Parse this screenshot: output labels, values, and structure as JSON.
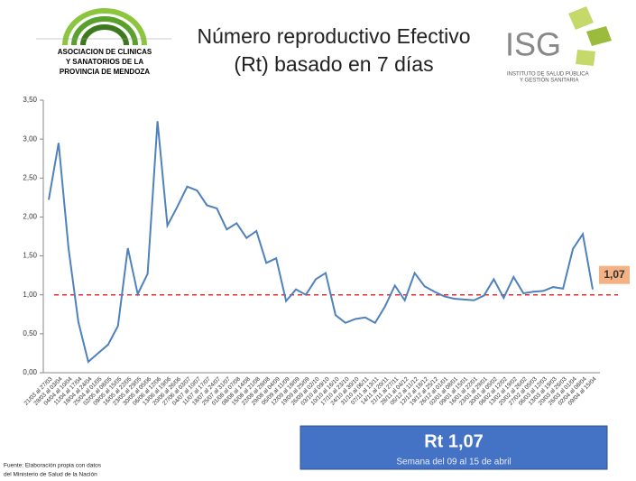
{
  "logo_left": {
    "lines": [
      "ASOCIACION DE CLINICAS",
      "Y SANATORIOS DE LA",
      "PROVINCIA DE MENDOZA"
    ]
  },
  "logo_right": {
    "name": "ISG",
    "lines": [
      "INSTITUTO DE SALUD PÚBLICA",
      "Y GESTIÓN SANITARIA"
    ]
  },
  "chart_data": {
    "type": "line",
    "title": [
      "Número reproductivo Efectivo",
      "(Rt) basado en 7 días"
    ],
    "categories": [
      "21/03 al 27/03",
      "28/03 al 03/04",
      "04/04 al 10/04",
      "11/04 al 17/04",
      "18/04 al 24/04",
      "25/04 al 01/05",
      "02/05 al 08/05",
      "09/05 al 15/05",
      "16/05 al 22/05",
      "23/05 al 29/05",
      "30/05 al 05/06",
      "06/06 al 12/06",
      "13/06 al 19/06",
      "20/06 al 26/06",
      "27/06 al 03/07",
      "04/07 al 10/07",
      "11/07 al 17/07",
      "18/07 al 24/07",
      "25/07 al 31/07",
      "01/08 al 07/08",
      "08/08 al 14/08",
      "15/08 al 21/08",
      "22/08 al 28/08",
      "29/08 al 04/09",
      "05/09 al 11/09",
      "12/09 al 18/09",
      "19/09 al 25/09",
      "26/09 al 02/10",
      "03/10 al 09/10",
      "10/10 al 16/10",
      "17/10 al 23/10",
      "24/10 al 30/10",
      "31/10 al 06/11",
      "07/11 al 13/11",
      "14/11 al 20/11",
      "21/11 al 27/11",
      "28/11 al 04/12",
      "05/12 al 11/12",
      "12/12 al 18/12",
      "19/12 al 25/12",
      "26/12 al 01/01",
      "02/01 al 08/01",
      "09/01 al 15/01",
      "16/01 al 22/01",
      "23/01 al 29/01",
      "30/01 al 05/02",
      "06/02 al 12/02",
      "13/02 al 19/02",
      "20/02 al 26/02",
      "27/02 al 05/03",
      "06/03 al 12/03",
      "13/03 al 19/03",
      "20/03 al 26/03",
      "26/03 al 01/04",
      "02/04 al 08/04",
      "09/04 al 15/04"
    ],
    "series": [
      {
        "name": "Rt",
        "color": "#4f81bd",
        "values": [
          2.22,
          2.95,
          1.6,
          0.65,
          0.14,
          0.25,
          0.36,
          0.6,
          1.6,
          1.01,
          1.27,
          3.23,
          1.89,
          2.13,
          2.39,
          2.34,
          2.15,
          2.11,
          1.84,
          1.92,
          1.73,
          1.82,
          1.41,
          1.47,
          0.92,
          1.07,
          1.0,
          1.2,
          1.28,
          0.74,
          0.64,
          0.69,
          0.71,
          0.64,
          0.85,
          1.12,
          0.93,
          1.28,
          1.11,
          1.04,
          0.98,
          0.95,
          0.94,
          0.93,
          0.99,
          1.2,
          0.96,
          1.23,
          1.02,
          1.04,
          1.05,
          1.1,
          1.08,
          1.59,
          1.78,
          1.07
        ]
      }
    ],
    "ylim": [
      0,
      3.5
    ],
    "yticks": [
      {
        "value": 0,
        "label": "0,00"
      },
      {
        "value": 0.5,
        "label": "0,50"
      },
      {
        "value": 1,
        "label": "1,00"
      },
      {
        "value": 1.5,
        "label": "1,50"
      },
      {
        "value": 2,
        "label": "2,00"
      },
      {
        "value": 2.5,
        "label": "2,50"
      },
      {
        "value": 3,
        "label": "3,00"
      },
      {
        "value": 3.5,
        "label": "3,50"
      }
    ],
    "reference_line": {
      "value": 1,
      "color": "#e03030"
    },
    "annotation": "1,07",
    "highlight": {
      "title": "Rt 1,07",
      "subtitle": "Semana del 09 al 15 de abril"
    },
    "source": [
      "Fuente: Elaboración propia con datos",
      "del Ministerio de Salud de la Nación"
    ]
  }
}
